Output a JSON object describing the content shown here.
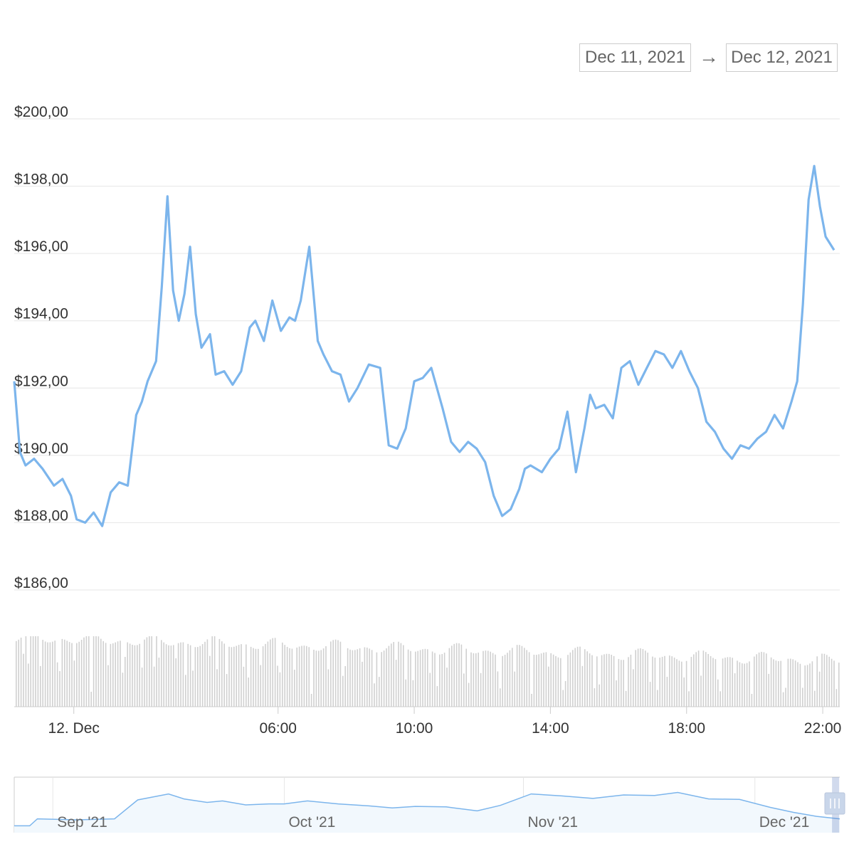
{
  "range_selector": {
    "from": "Dec 11, 2021",
    "arrow": "→",
    "to": "Dec 12, 2021"
  },
  "colors": {
    "line": "#7cb5ec",
    "grid": "#e6e6e6",
    "volume": "#d0d0d0",
    "navigator_fill": "#f2f8fd",
    "navigator_handle": "#c9d6ea"
  },
  "chart_data": [
    {
      "type": "line",
      "title": "",
      "xlabel": "",
      "ylabel": "",
      "ylim": [
        186,
        200
      ],
      "y_ticks": [
        {
          "value": 200,
          "label": "$200,00"
        },
        {
          "value": 198,
          "label": "$198,00"
        },
        {
          "value": 196,
          "label": "$196,00"
        },
        {
          "value": 194,
          "label": "$194,00"
        },
        {
          "value": 192,
          "label": "$192,00"
        },
        {
          "value": 190,
          "label": "$190,00"
        },
        {
          "value": 188,
          "label": "$188,00"
        },
        {
          "value": 186,
          "label": "$186,00"
        }
      ],
      "xlim": [
        "2021-12-11 22:15",
        "2021-12-12 22:30"
      ],
      "x_ticks": [
        {
          "value": "2021-12-12 00:00",
          "label": "12. Dec"
        },
        {
          "value": "2021-12-12 06:00",
          "label": "06:00"
        },
        {
          "value": "2021-12-12 10:00",
          "label": "10:00"
        },
        {
          "value": "2021-12-12 14:00",
          "label": "14:00"
        },
        {
          "value": "2021-12-12 18:00",
          "label": "18:00"
        },
        {
          "value": "2021-12-12 22:00",
          "label": "22:00"
        }
      ],
      "grid": true,
      "series": [
        {
          "x": [
            "2021-12-11 22:15",
            "2021-12-11 22:25",
            "2021-12-11 22:35",
            "2021-12-11 22:50",
            "2021-12-11 23:05",
            "2021-12-11 23:25",
            "2021-12-11 23:40",
            "2021-12-11 23:55",
            "2021-12-12 00:05",
            "2021-12-12 00:20",
            "2021-12-12 00:35",
            "2021-12-12 00:50",
            "2021-12-12 01:05",
            "2021-12-12 01:20",
            "2021-12-12 01:35",
            "2021-12-12 01:50",
            "2021-12-12 02:00",
            "2021-12-12 02:10",
            "2021-12-12 02:25",
            "2021-12-12 02:35",
            "2021-12-12 02:45",
            "2021-12-12 02:55",
            "2021-12-12 03:05",
            "2021-12-12 03:15",
            "2021-12-12 03:25",
            "2021-12-12 03:35",
            "2021-12-12 03:45",
            "2021-12-12 04:00",
            "2021-12-12 04:10",
            "2021-12-12 04:25",
            "2021-12-12 04:40",
            "2021-12-12 04:55",
            "2021-12-12 05:10",
            "2021-12-12 05:20",
            "2021-12-12 05:35",
            "2021-12-12 05:50",
            "2021-12-12 06:05",
            "2021-12-12 06:20",
            "2021-12-12 06:30",
            "2021-12-12 06:40",
            "2021-12-12 06:55",
            "2021-12-12 07:10",
            "2021-12-12 07:20",
            "2021-12-12 07:35",
            "2021-12-12 07:50",
            "2021-12-12 08:05",
            "2021-12-12 08:20",
            "2021-12-12 08:40",
            "2021-12-12 09:00",
            "2021-12-12 09:15",
            "2021-12-12 09:30",
            "2021-12-12 09:45",
            "2021-12-12 10:00",
            "2021-12-12 10:15",
            "2021-12-12 10:30",
            "2021-12-12 10:50",
            "2021-12-12 11:05",
            "2021-12-12 11:20",
            "2021-12-12 11:35",
            "2021-12-12 11:50",
            "2021-12-12 12:05",
            "2021-12-12 12:20",
            "2021-12-12 12:35",
            "2021-12-12 12:50",
            "2021-12-12 13:05",
            "2021-12-12 13:15",
            "2021-12-12 13:25",
            "2021-12-12 13:45",
            "2021-12-12 14:00",
            "2021-12-12 14:15",
            "2021-12-12 14:30",
            "2021-12-12 14:45",
            "2021-12-12 15:00",
            "2021-12-12 15:10",
            "2021-12-12 15:20",
            "2021-12-12 15:35",
            "2021-12-12 15:50",
            "2021-12-12 16:05",
            "2021-12-12 16:20",
            "2021-12-12 16:35",
            "2021-12-12 16:50",
            "2021-12-12 17:05",
            "2021-12-12 17:20",
            "2021-12-12 17:35",
            "2021-12-12 17:50",
            "2021-12-12 18:05",
            "2021-12-12 18:20",
            "2021-12-12 18:35",
            "2021-12-12 18:50",
            "2021-12-12 19:05",
            "2021-12-12 19:20",
            "2021-12-12 19:35",
            "2021-12-12 19:50",
            "2021-12-12 20:05",
            "2021-12-12 20:20",
            "2021-12-12 20:35",
            "2021-12-12 20:50",
            "2021-12-12 21:05",
            "2021-12-12 21:15",
            "2021-12-12 21:25",
            "2021-12-12 21:35",
            "2021-12-12 21:45",
            "2021-12-12 21:55",
            "2021-12-12 22:05",
            "2021-12-12 22:20"
          ],
          "values": [
            192.2,
            190.1,
            189.7,
            189.9,
            189.6,
            189.1,
            189.3,
            188.8,
            188.1,
            188.0,
            188.3,
            187.9,
            188.9,
            189.2,
            189.1,
            191.2,
            191.6,
            192.2,
            192.8,
            195.0,
            197.7,
            194.9,
            194.0,
            194.8,
            196.2,
            194.2,
            193.2,
            193.6,
            192.4,
            192.5,
            192.1,
            192.5,
            193.8,
            194.0,
            193.4,
            194.6,
            193.7,
            194.1,
            194.0,
            194.6,
            196.2,
            193.4,
            193.0,
            192.5,
            192.4,
            191.6,
            192.0,
            192.7,
            192.6,
            190.3,
            190.2,
            190.8,
            192.2,
            192.3,
            192.6,
            191.4,
            190.4,
            190.1,
            190.4,
            190.2,
            189.8,
            188.8,
            188.2,
            188.4,
            189.0,
            189.6,
            189.7,
            189.5,
            189.9,
            190.2,
            191.3,
            189.5,
            190.8,
            191.8,
            191.4,
            191.5,
            191.1,
            192.6,
            192.8,
            192.1,
            192.6,
            193.1,
            193.0,
            192.6,
            193.1,
            192.5,
            192.0,
            191.0,
            190.7,
            190.2,
            189.9,
            190.3,
            190.2,
            190.5,
            190.7,
            191.2,
            190.8,
            191.6,
            192.2,
            194.5,
            197.6,
            198.6,
            197.4,
            196.5,
            196.1
          ]
        }
      ]
    },
    {
      "type": "area",
      "title": "",
      "xlabel": "",
      "ylabel": "",
      "x_ticks": [
        {
          "value": "2021-09-01",
          "label": "Sep '21"
        },
        {
          "value": "2021-10-01",
          "label": "Oct '21"
        },
        {
          "value": "2021-11-01",
          "label": "Nov '21"
        },
        {
          "value": "2021-12-01",
          "label": "Dec '21"
        }
      ],
      "xlim": [
        "2021-08-27",
        "2021-12-12"
      ],
      "selected_range": [
        "2021-12-11",
        "2021-12-12"
      ],
      "ylim": [
        0,
        100
      ],
      "series": [
        {
          "x": [
            "2021-08-27",
            "2021-08-29",
            "2021-08-30",
            "2021-09-04",
            "2021-09-09",
            "2021-09-12",
            "2021-09-16",
            "2021-09-18",
            "2021-09-21",
            "2021-09-23",
            "2021-09-26",
            "2021-09-29",
            "2021-10-01",
            "2021-10-04",
            "2021-10-08",
            "2021-10-12",
            "2021-10-15",
            "2021-10-18",
            "2021-10-22",
            "2021-10-26",
            "2021-10-29",
            "2021-11-02",
            "2021-11-06",
            "2021-11-10",
            "2021-11-14",
            "2021-11-18",
            "2021-11-21",
            "2021-11-25",
            "2021-11-29",
            "2021-12-03",
            "2021-12-06",
            "2021-12-09",
            "2021-12-12"
          ],
          "values": [
            8,
            8,
            22,
            20,
            22,
            60,
            72,
            62,
            55,
            58,
            50,
            52,
            52,
            58,
            52,
            48,
            44,
            47,
            46,
            38,
            49,
            72,
            68,
            63,
            70,
            69,
            75,
            62,
            61,
            45,
            35,
            27,
            22
          ]
        }
      ]
    }
  ]
}
